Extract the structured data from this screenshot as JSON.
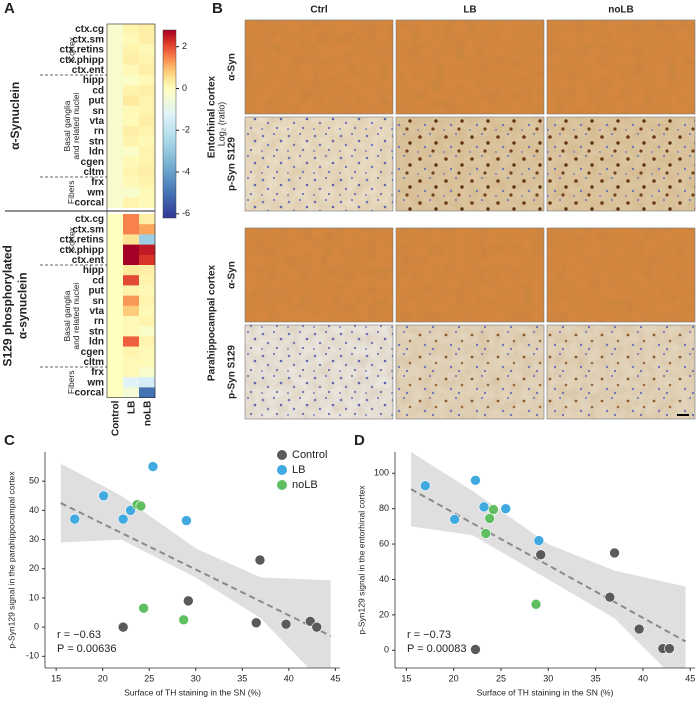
{
  "chart_data": [
    {
      "type": "heatmap",
      "panel": "A",
      "columns": [
        "Control",
        "LB",
        "noLB"
      ],
      "blocks": [
        {
          "title": [
            "α-Synuclein"
          ],
          "groups": [
            {
              "label": [
                "Cortex"
              ],
              "rows": [
                "ctx.cg",
                "ctx.sm",
                "ctx.retins",
                "ctx.phipp",
                "ctx.ent"
              ],
              "values": [
                [
                  -0.3,
                  0.2,
                  0.3
                ],
                [
                  -0.3,
                  0.1,
                  0.3
                ],
                [
                  -0.3,
                  0.2,
                  0.1
                ],
                [
                  -0.3,
                  0.3,
                  0.2
                ],
                [
                  -0.3,
                  0.1,
                  0.3
                ]
              ]
            },
            {
              "label": [
                "Basal ganglia",
                "and related nuclei"
              ],
              "rows": [
                "hipp",
                "cd",
                "put",
                "sn",
                "vta",
                "rn",
                "stn",
                "ldn",
                "cgen",
                "cltm"
              ],
              "values": [
                [
                  -0.3,
                  -0.2,
                  0.1
                ],
                [
                  -0.3,
                  0.2,
                  0.3
                ],
                [
                  -0.3,
                  0.4,
                  0.2
                ],
                [
                  -0.3,
                  0.1,
                  0.2
                ],
                [
                  -0.3,
                  0.1,
                  0.3
                ],
                [
                  -0.3,
                  0.3,
                  0.2
                ],
                [
                  -0.3,
                  0.2,
                  0.1
                ],
                [
                  -0.3,
                  -0.2,
                  0.2
                ],
                [
                  -0.3,
                  0.1,
                  0.2
                ],
                [
                  -0.3,
                  0.2,
                  0.3
                ]
              ]
            },
            {
              "label": [
                "Fibers"
              ],
              "rows": [
                "frx",
                "wm",
                "corcal"
              ],
              "values": [
                [
                  -0.3,
                  0.1,
                  0.2
                ],
                [
                  -0.3,
                  -0.3,
                  0.1
                ],
                [
                  -0.3,
                  0.2,
                  0.1
                ]
              ]
            }
          ]
        },
        {
          "title": [
            "S129 phosphorylated",
            "α-synuclein"
          ],
          "groups": [
            {
              "label": [
                "Cortex"
              ],
              "rows": [
                "ctx.cg",
                "ctx.sm",
                "ctx.retins",
                "ctx.phipp",
                "ctx.ent"
              ],
              "values": [
                [
                  0,
                  1.5,
                  0.3
                ],
                [
                  0,
                  1.5,
                  1.2
                ],
                [
                  0,
                  0.5,
                  -2.8
                ],
                [
                  0,
                  3,
                  2.5
                ],
                [
                  0,
                  2.8,
                  2.2
                ]
              ]
            },
            {
              "label": [
                "Basal ganglia",
                "and related nuclei"
              ],
              "rows": [
                "hipp",
                "cd",
                "put",
                "sn",
                "vta",
                "rn",
                "stn",
                "ldn",
                "cgen",
                "cltm"
              ],
              "values": [
                [
                  0,
                  0.4,
                  0.3
                ],
                [
                  0,
                  2,
                  0.2
                ],
                [
                  0,
                  0.2,
                  0.1
                ],
                [
                  0,
                  1.3,
                  0.2
                ],
                [
                  0,
                  0.8,
                  0.1
                ],
                [
                  0,
                  0.1,
                  0.2
                ],
                [
                  0,
                  0.1,
                  -0.2
                ],
                [
                  0,
                  1.8,
                  0.2
                ],
                [
                  0,
                  0.2,
                  0.1
                ],
                [
                  0,
                  0.1,
                  0.1
                ]
              ]
            },
            {
              "label": [
                "Fibers"
              ],
              "rows": [
                "frx",
                "wm",
                "corcal"
              ],
              "values": [
                [
                  0,
                  0.1,
                  -0.3
                ],
                [
                  0,
                  -1.2,
                  -1.5
                ],
                [
                  0,
                  -0.5,
                  -5
                ]
              ]
            }
          ]
        }
      ],
      "colorbar": {
        "label": "Log₂ (ratio)",
        "lim": [
          -6.2,
          2.8
        ],
        "ticks": [
          2,
          0,
          -2,
          -4,
          -6
        ],
        "center": 0,
        "colors": [
          "#313695",
          "#4575b4",
          "#74add1",
          "#abd9e9",
          "#e0f3f8",
          "#ffffbf",
          "#fee090",
          "#fdae61",
          "#f46d43",
          "#d73027",
          "#a50026"
        ]
      }
    },
    {
      "type": "scatter",
      "panel": "C",
      "xlabel": "Surface of TH staining in the SN (%)",
      "ylabel": "p-Syn129 signal in the parahippocampal cortex",
      "xlim": [
        13.8,
        45.5
      ],
      "ylim": [
        -14,
        60
      ],
      "xticks": [
        15,
        20,
        25,
        30,
        35,
        40,
        45
      ],
      "yticks": [
        -10,
        0,
        10,
        20,
        30,
        40,
        50
      ],
      "series": [
        {
          "name": "Control",
          "color": "#5a5a5a",
          "x": [
            22.2,
            29.2,
            36.9,
            36.5,
            39.7,
            42.3,
            43
          ],
          "values": [
            0,
            9,
            23,
            1.5,
            1,
            2,
            0
          ]
        },
        {
          "name": "LB",
          "color": "#3fa9e0",
          "x": [
            17,
            20.1,
            22.2,
            23,
            25.4,
            29
          ],
          "values": [
            37,
            45,
            37,
            40,
            55,
            36.5
          ]
        },
        {
          "name": "noLB",
          "color": "#5fbf60",
          "x": [
            23.7,
            24.1,
            24.4,
            28.7
          ],
          "values": [
            42,
            41.5,
            6.5,
            2.5
          ]
        }
      ],
      "fit": {
        "x": [
          15.5,
          44.5
        ],
        "values": [
          42.5,
          -3
        ]
      },
      "band": {
        "x": [
          15.5,
          22,
          30,
          37,
          44.5
        ],
        "upper": [
          56,
          45,
          27,
          17,
          16
        ],
        "lower": [
          29,
          30,
          17,
          3,
          -22
        ]
      },
      "annotations": [
        "r = −0.63",
        "P = 0.00636"
      ],
      "legend": "upper right"
    },
    {
      "type": "scatter",
      "panel": "D",
      "xlabel": "Surface of TH staining in the SN (%)",
      "ylabel": "p-Syn129 signal in the entorhinal cortex",
      "xlim": [
        13.8,
        45.5
      ],
      "ylim": [
        -10,
        112
      ],
      "xticks": [
        15,
        20,
        25,
        30,
        35,
        40,
        45
      ],
      "yticks": [
        0,
        20,
        40,
        60,
        80,
        100
      ],
      "series": [
        {
          "color": "#5a5a5a",
          "x": [
            22.3,
            29.2,
            36.5,
            37,
            39.6,
            42.1,
            42.8
          ],
          "values": [
            0.5,
            54,
            30,
            55,
            12,
            1,
            1
          ]
        },
        {
          "color": "#3fa9e0",
          "x": [
            17,
            20.1,
            22.3,
            23.2,
            25.5,
            29
          ],
          "values": [
            93,
            74,
            96,
            81,
            80,
            62
          ]
        },
        {
          "color": "#5fbf60",
          "x": [
            23.4,
            23.8,
            24.2,
            28.7
          ],
          "values": [
            66,
            74.5,
            79.5,
            26
          ]
        }
      ],
      "fit": {
        "x": [
          15.5,
          44.5
        ],
        "values": [
          91,
          5
        ]
      },
      "band": {
        "x": [
          15.5,
          22,
          30,
          37,
          44.5
        ],
        "upper": [
          112,
          90,
          60,
          45,
          36
        ],
        "lower": [
          70,
          65,
          40,
          18,
          -22
        ]
      },
      "annotations": [
        "r = −0.73",
        "P = 0.00083"
      ]
    }
  ],
  "panel_b": {
    "label": "B",
    "columns": [
      "Ctrl",
      "LB",
      "noLB"
    ],
    "sections": [
      {
        "title": "Entorhinal cortex",
        "rows": [
          "α-Syn",
          "p-Syn S129"
        ]
      },
      {
        "title": "Parahippocampal cortex",
        "rows": [
          "α-Syn",
          "p-Syn S129"
        ]
      }
    ]
  }
}
